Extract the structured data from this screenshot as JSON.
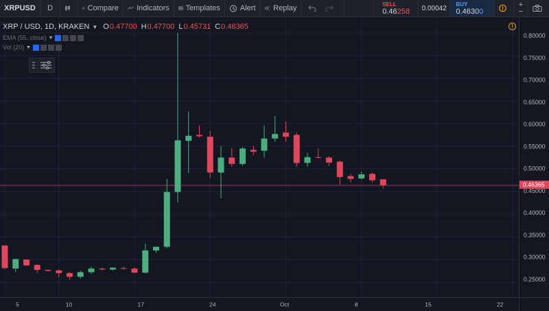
{
  "toolbar": {
    "symbol": "XRPUSD",
    "interval": "D",
    "compare_label": "Compare",
    "indicators_label": "Indicators",
    "templates_label": "Templates",
    "alert_label": "Alert",
    "replay_label": "Replay",
    "sell": {
      "label": "SELL",
      "price_main": "0.46",
      "price_hl": "258"
    },
    "spread": "0.00042",
    "buy": {
      "label": "BUY",
      "price_main": "0.4630",
      "price_hl": "0"
    },
    "zoom_in": "+",
    "zoom_out": "−"
  },
  "legend": {
    "pair": "XRP / USD, 1D, KRAKEN",
    "o_key": "O",
    "o_val": "0.47700",
    "h_key": "H",
    "h_val": "0.47700",
    "l_key": "L",
    "l_val": "0.45731",
    "c_key": "C",
    "c_val": "0.46365"
  },
  "indicators": [
    {
      "label": "EMA (55, close)"
    },
    {
      "label": "Vol (20)"
    }
  ],
  "warning_mark": "!",
  "colors": {
    "background": "#131722",
    "grid": "#1f2330",
    "up": "#4cae7f",
    "down": "#e0475c",
    "price_line": "#a13a45",
    "axis_text": "#b2b5be"
  },
  "chart_data": {
    "type": "candlestick",
    "title": "XRP / USD, 1D, KRAKEN",
    "ylim": [
      0.23,
      0.81
    ],
    "y_ticks": [
      0.25,
      0.3,
      0.35,
      0.4,
      0.45,
      0.5,
      0.55,
      0.6,
      0.65,
      0.7,
      0.75,
      0.8
    ],
    "y_tick_labels": [
      "0.25000",
      "0.30000",
      "0.35000",
      "0.40000",
      "0.45000",
      "0.50000",
      "0.55000",
      "0.60000",
      "0.65000",
      "0.70000",
      "0.75000",
      "0.80000"
    ],
    "x_tick_labels": [
      {
        "label": "5",
        "index": 0
      },
      {
        "label": "10",
        "index": 5
      },
      {
        "label": "17",
        "index": 12
      },
      {
        "label": "24",
        "index": 19
      },
      {
        "label": "Oct",
        "index": 26
      },
      {
        "label": "8",
        "index": 33
      },
      {
        "label": "15",
        "index": 40
      },
      {
        "label": "22",
        "index": 47
      }
    ],
    "last_price": 0.46365,
    "last_price_label": "0.46365",
    "candles": [
      {
        "o": 0.331,
        "h": 0.331,
        "l": 0.279,
        "c": 0.281
      },
      {
        "o": 0.28,
        "h": 0.302,
        "l": 0.272,
        "c": 0.301
      },
      {
        "o": 0.3,
        "h": 0.3,
        "l": 0.286,
        "c": 0.287
      },
      {
        "o": 0.288,
        "h": 0.29,
        "l": 0.27,
        "c": 0.277
      },
      {
        "o": 0.277,
        "h": 0.278,
        "l": 0.273,
        "c": 0.275
      },
      {
        "o": 0.276,
        "h": 0.278,
        "l": 0.26,
        "c": 0.27
      },
      {
        "o": 0.27,
        "h": 0.272,
        "l": 0.256,
        "c": 0.262
      },
      {
        "o": 0.262,
        "h": 0.275,
        "l": 0.258,
        "c": 0.272
      },
      {
        "o": 0.272,
        "h": 0.284,
        "l": 0.268,
        "c": 0.28
      },
      {
        "o": 0.28,
        "h": 0.282,
        "l": 0.276,
        "c": 0.278
      },
      {
        "o": 0.278,
        "h": 0.283,
        "l": 0.276,
        "c": 0.282
      },
      {
        "o": 0.281,
        "h": 0.284,
        "l": 0.277,
        "c": 0.28
      },
      {
        "o": 0.28,
        "h": 0.283,
        "l": 0.27,
        "c": 0.271
      },
      {
        "o": 0.271,
        "h": 0.335,
        "l": 0.269,
        "c": 0.32
      },
      {
        "o": 0.32,
        "h": 0.329,
        "l": 0.315,
        "c": 0.328
      },
      {
        "o": 0.328,
        "h": 0.478,
        "l": 0.325,
        "c": 0.449
      },
      {
        "o": 0.449,
        "h": 0.8,
        "l": 0.426,
        "c": 0.563
      },
      {
        "o": 0.562,
        "h": 0.627,
        "l": 0.491,
        "c": 0.573
      },
      {
        "o": 0.575,
        "h": 0.596,
        "l": 0.569,
        "c": 0.572
      },
      {
        "o": 0.571,
        "h": 0.584,
        "l": 0.48,
        "c": 0.492
      },
      {
        "o": 0.492,
        "h": 0.55,
        "l": 0.435,
        "c": 0.525
      },
      {
        "o": 0.525,
        "h": 0.546,
        "l": 0.505,
        "c": 0.511
      },
      {
        "o": 0.511,
        "h": 0.548,
        "l": 0.507,
        "c": 0.545
      },
      {
        "o": 0.542,
        "h": 0.551,
        "l": 0.53,
        "c": 0.538
      },
      {
        "o": 0.54,
        "h": 0.596,
        "l": 0.525,
        "c": 0.567
      },
      {
        "o": 0.567,
        "h": 0.617,
        "l": 0.56,
        "c": 0.577
      },
      {
        "o": 0.58,
        "h": 0.604,
        "l": 0.56,
        "c": 0.571
      },
      {
        "o": 0.575,
        "h": 0.58,
        "l": 0.505,
        "c": 0.513
      },
      {
        "o": 0.513,
        "h": 0.535,
        "l": 0.505,
        "c": 0.526
      },
      {
        "o": 0.526,
        "h": 0.545,
        "l": 0.523,
        "c": 0.525
      },
      {
        "o": 0.525,
        "h": 0.528,
        "l": 0.507,
        "c": 0.514
      },
      {
        "o": 0.516,
        "h": 0.518,
        "l": 0.465,
        "c": 0.482
      },
      {
        "o": 0.484,
        "h": 0.489,
        "l": 0.47,
        "c": 0.478
      },
      {
        "o": 0.479,
        "h": 0.494,
        "l": 0.476,
        "c": 0.488
      },
      {
        "o": 0.489,
        "h": 0.492,
        "l": 0.47,
        "c": 0.475
      },
      {
        "o": 0.477,
        "h": 0.477,
        "l": 0.457,
        "c": 0.464
      }
    ]
  }
}
